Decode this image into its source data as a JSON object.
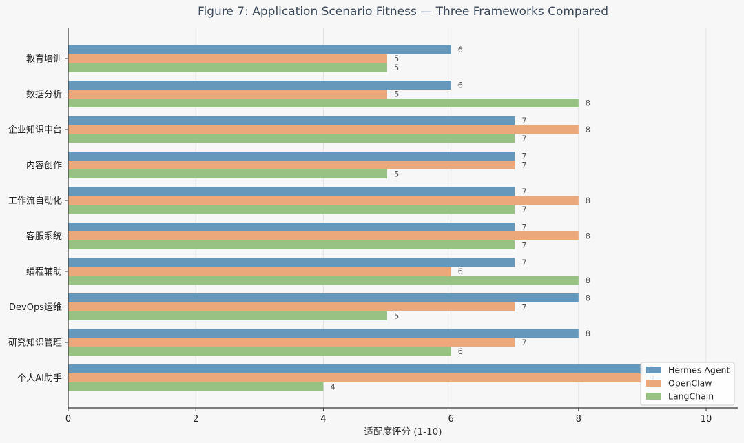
{
  "chart_data": {
    "type": "bar",
    "orientation": "horizontal",
    "title": "Figure 7: Application Scenario Fitness — Three Frameworks Compared",
    "xlabel": "适配度评分 (1-10)",
    "ylabel": "",
    "xlim": [
      0,
      10.5
    ],
    "xticks": [
      0,
      2,
      4,
      6,
      8,
      10
    ],
    "grid": "x",
    "legend_position": "bottom-right",
    "categories": [
      "教育培训",
      "数据分析",
      "企业知识中台",
      "内容创作",
      "工作流自动化",
      "客服系统",
      "编程辅助",
      "DevOps运维",
      "研究知识管理",
      "个人AI助手"
    ],
    "series": [
      {
        "name": "Hermes Agent",
        "color": "#6598bb",
        "values": [
          6,
          6,
          7,
          7,
          7,
          7,
          7,
          8,
          8,
          9
        ]
      },
      {
        "name": "OpenClaw",
        "color": "#eba97b",
        "values": [
          5,
          5,
          8,
          7,
          8,
          8,
          6,
          7,
          7,
          9
        ]
      },
      {
        "name": "LangChain",
        "color": "#98c284",
        "values": [
          5,
          8,
          7,
          5,
          7,
          7,
          8,
          5,
          6,
          4
        ]
      }
    ]
  }
}
